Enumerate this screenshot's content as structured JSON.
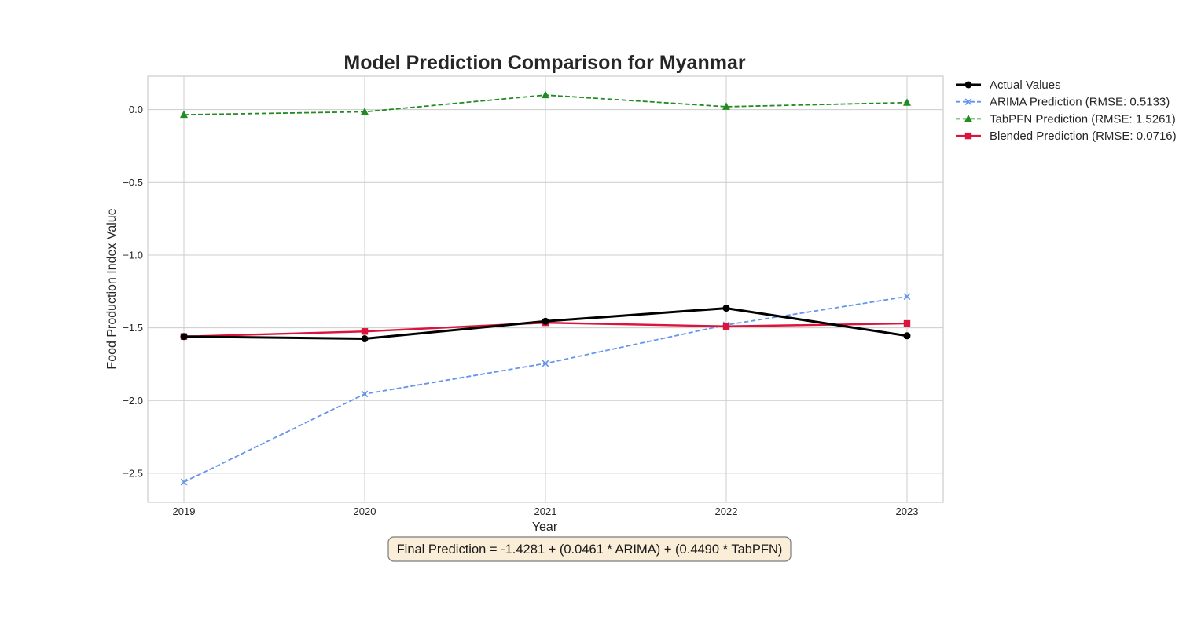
{
  "chart_data": {
    "type": "line",
    "title": "Model Prediction Comparison for Myanmar",
    "xlabel": "Year",
    "ylabel": "Food Production Index Value",
    "x": [
      2019,
      2020,
      2021,
      2022,
      2023
    ],
    "x_tick_labels": [
      "2019",
      "2020",
      "2021",
      "2022",
      "2023"
    ],
    "xlim": [
      2018.8,
      2023.2
    ],
    "ylim": [
      -2.7,
      0.23
    ],
    "y_ticks": [
      0.0,
      -0.5,
      -1.0,
      -1.5,
      -2.0,
      -2.5
    ],
    "y_tick_labels": [
      "0.0",
      "−0.5",
      "−1.0",
      "−1.5",
      "−2.0",
      "−2.5"
    ],
    "grid": true,
    "legend_position": "outside-top-right",
    "series": [
      {
        "name": "Actual Values",
        "values": [
          -1.56,
          -1.575,
          -1.455,
          -1.365,
          -1.555
        ],
        "color": "#000000",
        "dash": "solid",
        "marker": "circle",
        "bold": true
      },
      {
        "name": "ARIMA Prediction (RMSE: 0.5133)",
        "values": [
          -2.56,
          -1.955,
          -1.745,
          -1.48,
          -1.285
        ],
        "color": "#6495ED",
        "dash": "dashed",
        "marker": "x",
        "bold": false
      },
      {
        "name": "TabPFN Prediction (RMSE: 1.5261)",
        "values": [
          -0.035,
          -0.015,
          0.1,
          0.02,
          0.048
        ],
        "color": "#228B22",
        "dash": "dashed",
        "marker": "triangle",
        "bold": false
      },
      {
        "name": "Blended Prediction (RMSE: 0.0716)",
        "values": [
          -1.56,
          -1.525,
          -1.465,
          -1.49,
          -1.47
        ],
        "color": "#DC143C",
        "dash": "solid",
        "marker": "square",
        "bold": false
      }
    ],
    "annotation": "Final Prediction = -1.4281 + (0.0461 * ARIMA) + (0.4490 * TabPFN)"
  }
}
